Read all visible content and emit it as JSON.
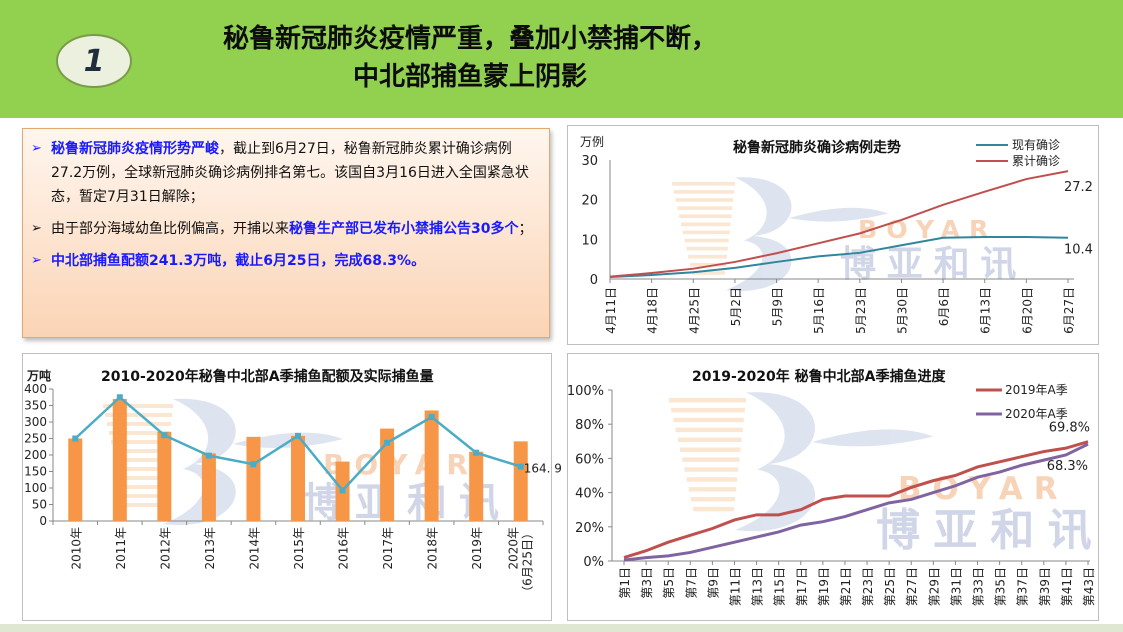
{
  "header": {
    "badge": "1",
    "title_line1": "秘鲁新冠肺炎疫情严重，叠加小禁捕不断，",
    "title_line2": "中北部捕鱼蒙上阴影"
  },
  "bullets": [
    {
      "marker": "➢",
      "highlight": "秘鲁新冠肺炎疫情形势严峻",
      "text": "，截止到6月27日，秘鲁新冠肺炎累计确诊病例27.2万例，全球新冠肺炎确诊病例排名第七。该国自3月16日进入全国紧急状态，暂定7月31日解除；"
    },
    {
      "marker": "➢",
      "prefix": "由于部分海域幼鱼比例偏高，开捕以来",
      "highlight": "秘鲁生产部已发布小禁捕公告30多个",
      "suffix": "；"
    },
    {
      "marker": "➢",
      "highlight": "中北部捕鱼配额241.3万吨，截止6月25日，完成68.3%。"
    }
  ],
  "watermark": {
    "text_en": "BOYAR",
    "text_cn": "博亚和讯"
  },
  "colors": {
    "header_bg": "#92d050",
    "accent_blue": "#1a1aff",
    "bar_orange": "#f79646",
    "line_teal": "#4bacc6",
    "covid_active": "#31859c",
    "covid_total": "#c0504d",
    "fish_2019": "#c0504d",
    "fish_2020": "#8064a2"
  },
  "chart_data": [
    {
      "type": "line",
      "title": "秘鲁新冠肺炎确诊病例走势",
      "ylabel": "万例",
      "ylim": [
        0,
        30
      ],
      "yticks": [
        "0",
        "10",
        "20",
        "30"
      ],
      "xticks": [
        "4月11日",
        "4月18日",
        "4月25日",
        "5月2日",
        "5月9日",
        "5月16日",
        "5月23日",
        "5月30日",
        "6月6日",
        "6月13日",
        "6月20日",
        "6月27日"
      ],
      "x": [
        "4月11日",
        "4月18日",
        "4月25日",
        "5月2日",
        "5月9日",
        "5月16日",
        "5月23日",
        "5月30日",
        "6月6日",
        "6月13日",
        "6月20日",
        "6月27日"
      ],
      "series": [
        {
          "name": "现有确诊",
          "values": [
            0.5,
            1.0,
            1.7,
            2.8,
            4.3,
            5.7,
            6.6,
            8.5,
            10.4,
            10.6,
            10.6,
            10.4
          ],
          "end_label": "10.4"
        },
        {
          "name": "累计确诊",
          "values": [
            0.6,
            1.5,
            2.6,
            4.3,
            6.5,
            9.0,
            11.5,
            14.9,
            18.7,
            22.0,
            25.2,
            27.2
          ],
          "end_label": "27.2"
        }
      ],
      "legend": "top-right"
    },
    {
      "type": "bar",
      "title": "2010-2020年秘鲁中北部A季捕鱼配额及实际捕鱼量",
      "ylabel": "万吨",
      "ylim": [
        0,
        400
      ],
      "yticks": [
        "0",
        "50",
        "100",
        "150",
        "200",
        "250",
        "300",
        "350",
        "400"
      ],
      "categories": [
        "2010年",
        "2011年",
        "2012年",
        "2013年",
        "2014年",
        "2015年",
        "2016年",
        "2017年",
        "2018年",
        "2019年",
        "2020年（6月25日）"
      ],
      "series": [
        {
          "kind": "bar",
          "values": [
            250,
            370,
            270,
            205,
            255,
            258,
            180,
            280,
            335,
            210,
            241.3
          ]
        },
        {
          "kind": "line",
          "values": [
            250,
            375,
            260,
            198,
            172,
            258,
            93,
            237,
            315,
            207,
            164.9
          ],
          "end_label": "164. 9"
        }
      ]
    },
    {
      "type": "line",
      "title": "2019-2020年 秘鲁中北部A季捕鱼进度",
      "ylim": [
        0,
        100
      ],
      "yticks": [
        "0%",
        "20%",
        "40%",
        "60%",
        "80%",
        "100%"
      ],
      "xticks": [
        "第1日",
        "第3日",
        "第5日",
        "第7日",
        "第9日",
        "第11日",
        "第13日",
        "第15日",
        "第17日",
        "第19日",
        "第21日",
        "第23日",
        "第25日",
        "第27日",
        "第29日",
        "第31日",
        "第33日",
        "第35日",
        "第37日",
        "第39日",
        "第41日",
        "第43日"
      ],
      "x": [
        1,
        3,
        5,
        7,
        9,
        11,
        13,
        15,
        17,
        19,
        21,
        23,
        25,
        27,
        29,
        31,
        33,
        35,
        37,
        39,
        41,
        43
      ],
      "series": [
        {
          "name": "2019年A季",
          "values": [
            2,
            6,
            11,
            15,
            19,
            24,
            27,
            27,
            30,
            36,
            38,
            38,
            38,
            43,
            47,
            50,
            55,
            58,
            61,
            64,
            66,
            69.8
          ],
          "end_label": "69.8%"
        },
        {
          "name": "2020年A季",
          "values": [
            0.5,
            2,
            3,
            5,
            8,
            11,
            14,
            17,
            21,
            23,
            26,
            30,
            34,
            36,
            40,
            44,
            49,
            52,
            56,
            59,
            62,
            68.3
          ],
          "end_label": "68.3%"
        }
      ],
      "legend": "top-right"
    }
  ]
}
